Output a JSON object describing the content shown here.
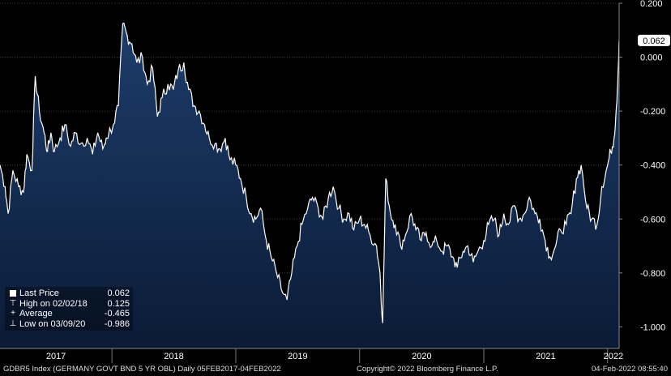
{
  "chart_data": {
    "type": "area",
    "x_labels": [
      "2017",
      "2018",
      "2019",
      "2020",
      "2021",
      "2022"
    ],
    "y_ticks": [
      "0.200",
      "0.000",
      "-0.200",
      "-0.400",
      "-0.600",
      "-0.800",
      "-1.000"
    ],
    "ylim": [
      -1.08,
      0.2
    ],
    "last_value_label": "0.062",
    "grid": true,
    "legend_position": "bottom-left",
    "series": [
      {
        "x": [
          "2017-02-05",
          "2017-02-20",
          "2017-03-01",
          "2017-03-15",
          "2017-04-01",
          "2017-04-15",
          "2017-04-25",
          "2017-05-10",
          "2017-05-20",
          "2017-06-01",
          "2017-06-15",
          "2017-06-25",
          "2017-07-05",
          "2017-07-15",
          "2017-08-01",
          "2017-08-15",
          "2017-09-01",
          "2017-09-15",
          "2017-10-01",
          "2017-10-20",
          "2017-11-05",
          "2017-11-20",
          "2017-12-05",
          "2017-12-15",
          "2018-01-05",
          "2018-01-20",
          "2018-02-02",
          "2018-02-15",
          "2018-03-01",
          "2018-03-15",
          "2018-04-01",
          "2018-04-15",
          "2018-05-01",
          "2018-05-15",
          "2018-05-29",
          "2018-06-15",
          "2018-07-01",
          "2018-07-15",
          "2018-08-01",
          "2018-08-15",
          "2018-09-01",
          "2018-09-15",
          "2018-10-01",
          "2018-10-15",
          "2018-11-01",
          "2018-11-15",
          "2018-12-01",
          "2018-12-15",
          "2019-01-01",
          "2019-01-15",
          "2019-02-01",
          "2019-02-15",
          "2019-03-01",
          "2019-03-15",
          "2019-04-01",
          "2019-04-15",
          "2019-05-01",
          "2019-05-15",
          "2019-06-01",
          "2019-06-15",
          "2019-07-01",
          "2019-07-15",
          "2019-08-01",
          "2019-08-15",
          "2019-09-01",
          "2019-09-15",
          "2019-10-01",
          "2019-10-15",
          "2019-11-01",
          "2019-11-15",
          "2019-12-01",
          "2019-12-15",
          "2020-01-01",
          "2020-01-15",
          "2020-02-01",
          "2020-02-20",
          "2020-03-01",
          "2020-03-09",
          "2020-03-18",
          "2020-04-01",
          "2020-04-15",
          "2020-05-01",
          "2020-05-15",
          "2020-06-01",
          "2020-06-15",
          "2020-07-01",
          "2020-07-15",
          "2020-08-01",
          "2020-08-15",
          "2020-09-01",
          "2020-09-15",
          "2020-10-01",
          "2020-10-15",
          "2020-11-01",
          "2020-11-15",
          "2020-12-01",
          "2020-12-15",
          "2021-01-01",
          "2021-01-15",
          "2021-02-01",
          "2021-02-15",
          "2021-03-01",
          "2021-03-15",
          "2021-04-01",
          "2021-04-15",
          "2021-05-01",
          "2021-05-15",
          "2021-06-01",
          "2021-06-15",
          "2021-07-01",
          "2021-07-15",
          "2021-08-01",
          "2021-08-15",
          "2021-09-01",
          "2021-09-15",
          "2021-10-01",
          "2021-10-15",
          "2021-11-01",
          "2021-11-15",
          "2021-12-01",
          "2021-12-15",
          "2022-01-01",
          "2022-01-10",
          "2022-01-20",
          "2022-01-27",
          "2022-02-01",
          "2022-02-04"
        ],
        "values": [
          -0.4,
          -0.48,
          -0.58,
          -0.42,
          -0.48,
          -0.5,
          -0.36,
          -0.42,
          -0.07,
          -0.2,
          -0.28,
          -0.35,
          -0.28,
          -0.35,
          -0.3,
          -0.25,
          -0.33,
          -0.28,
          -0.32,
          -0.3,
          -0.36,
          -0.28,
          -0.34,
          -0.3,
          -0.25,
          -0.18,
          0.125,
          0.08,
          0.05,
          -0.02,
          0.0,
          -0.1,
          -0.04,
          -0.22,
          -0.15,
          -0.1,
          -0.12,
          -0.05,
          -0.02,
          -0.12,
          -0.18,
          -0.2,
          -0.25,
          -0.3,
          -0.32,
          -0.34,
          -0.3,
          -0.38,
          -0.4,
          -0.45,
          -0.52,
          -0.58,
          -0.6,
          -0.56,
          -0.68,
          -0.74,
          -0.8,
          -0.86,
          -0.9,
          -0.8,
          -0.7,
          -0.62,
          -0.56,
          -0.52,
          -0.56,
          -0.6,
          -0.52,
          -0.48,
          -0.56,
          -0.6,
          -0.58,
          -0.64,
          -0.6,
          -0.62,
          -0.66,
          -0.7,
          -0.8,
          -0.986,
          -0.45,
          -0.58,
          -0.62,
          -0.7,
          -0.66,
          -0.58,
          -0.64,
          -0.68,
          -0.65,
          -0.7,
          -0.68,
          -0.72,
          -0.7,
          -0.74,
          -0.78,
          -0.72,
          -0.7,
          -0.76,
          -0.72,
          -0.68,
          -0.62,
          -0.6,
          -0.66,
          -0.58,
          -0.62,
          -0.55,
          -0.6,
          -0.58,
          -0.52,
          -0.58,
          -0.6,
          -0.68,
          -0.74,
          -0.7,
          -0.64,
          -0.62,
          -0.58,
          -0.45,
          -0.4,
          -0.56,
          -0.6,
          -0.62,
          -0.48,
          -0.4,
          -0.35,
          -0.3,
          -0.18,
          -0.05,
          0.062
        ]
      }
    ],
    "legend": [
      {
        "symbol": "box",
        "label": "Last Price",
        "value": "0.062"
      },
      {
        "symbol": "high",
        "label": "High on 02/02/18",
        "value": "0.125"
      },
      {
        "symbol": "avg",
        "label": "Average",
        "value": "-0.465"
      },
      {
        "symbol": "low",
        "label": "Low on 03/09/20",
        "value": "-0.986"
      }
    ],
    "colors": {
      "background": "#000000",
      "area_top": "#1b3a66",
      "area_bottom": "#0a1a33",
      "line": "#ffffff",
      "grid": "#4a4a4a"
    }
  },
  "footer": {
    "left": "GDBR5 Index (GERMANY GOVT BND 5 YR OBL)  Daily 05FEB2017-04FEB2022",
    "center": "Copyright© 2022 Bloomberg Finance L.P.",
    "right": "04-Feb-2022 08:55:40"
  }
}
